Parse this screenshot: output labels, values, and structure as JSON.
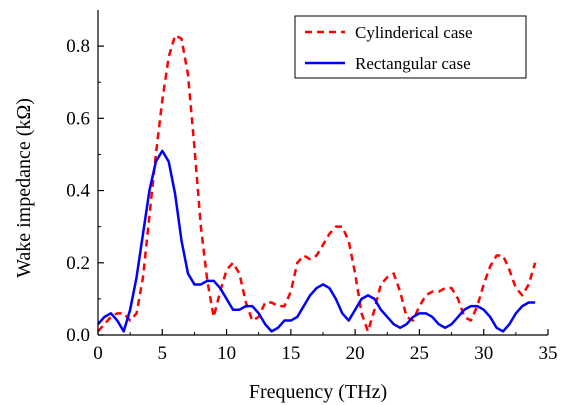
{
  "chart_data": {
    "type": "line",
    "title": "",
    "xlabel": "Frequency (THz)",
    "ylabel": "Wake impedance (kΩ)",
    "xlim": [
      0,
      35
    ],
    "ylim": [
      0,
      0.9
    ],
    "xticks": [
      0,
      5,
      10,
      15,
      20,
      25,
      30,
      35
    ],
    "yticks": [
      0.0,
      0.2,
      0.4,
      0.6,
      0.8
    ],
    "xtick_labels": [
      "0",
      "5",
      "10",
      "15",
      "20",
      "25",
      "30",
      "35"
    ],
    "ytick_labels": [
      "0.0",
      "0.2",
      "0.4",
      "0.6",
      "0.8"
    ],
    "grid": false,
    "legend_position": "top-right",
    "series": [
      {
        "name": "Cylinderical case",
        "style": "dashed",
        "color": "#ff0000",
        "x": [
          0,
          0.5,
          1,
          1.5,
          2,
          2.5,
          3,
          3.5,
          4,
          4.5,
          5,
          5.5,
          6,
          6.5,
          7,
          7.5,
          8,
          8.5,
          9,
          9.5,
          10,
          10.5,
          11,
          11.5,
          12,
          12.5,
          13,
          13.5,
          14,
          14.5,
          15,
          15.5,
          16,
          16.5,
          17,
          17.5,
          18,
          18.5,
          19,
          19.5,
          20,
          20.5,
          21,
          21.5,
          22,
          22.5,
          23,
          23.5,
          24,
          24.5,
          25,
          25.5,
          26,
          26.5,
          27,
          27.5,
          28,
          28.5,
          29,
          29.5,
          30,
          30.5,
          31,
          31.5,
          32,
          32.5,
          33,
          33.5,
          34
        ],
        "y": [
          0.01,
          0.03,
          0.05,
          0.06,
          0.06,
          0.04,
          0.06,
          0.16,
          0.33,
          0.5,
          0.65,
          0.77,
          0.83,
          0.82,
          0.72,
          0.52,
          0.3,
          0.15,
          0.05,
          0.12,
          0.18,
          0.2,
          0.17,
          0.09,
          0.04,
          0.05,
          0.09,
          0.09,
          0.08,
          0.08,
          0.12,
          0.2,
          0.22,
          0.21,
          0.22,
          0.25,
          0.28,
          0.3,
          0.3,
          0.26,
          0.17,
          0.06,
          0.01,
          0.07,
          0.14,
          0.16,
          0.17,
          0.12,
          0.05,
          0.04,
          0.08,
          0.11,
          0.12,
          0.12,
          0.13,
          0.13,
          0.1,
          0.05,
          0.04,
          0.08,
          0.14,
          0.19,
          0.22,
          0.22,
          0.18,
          0.13,
          0.11,
          0.14,
          0.2
        ]
      },
      {
        "name": "Rectangular case",
        "style": "solid",
        "color": "#0000ff",
        "x": [
          0,
          0.5,
          1,
          1.5,
          2,
          2.5,
          3,
          3.5,
          4,
          4.5,
          5,
          5.5,
          6,
          6.5,
          7,
          7.5,
          8,
          8.5,
          9,
          9.5,
          10,
          10.5,
          11,
          11.5,
          12,
          12.5,
          13,
          13.5,
          14,
          14.5,
          15,
          15.5,
          16,
          16.5,
          17,
          17.5,
          18,
          18.5,
          19,
          19.5,
          20,
          20.5,
          21,
          21.5,
          22,
          22.5,
          23,
          23.5,
          24,
          24.5,
          25,
          25.5,
          26,
          26.5,
          27,
          27.5,
          28,
          28.5,
          29,
          29.5,
          30,
          30.5,
          31,
          31.5,
          32,
          32.5,
          33,
          33.5,
          34
        ],
        "y": [
          0.03,
          0.05,
          0.06,
          0.04,
          0.01,
          0.07,
          0.16,
          0.28,
          0.4,
          0.48,
          0.51,
          0.48,
          0.39,
          0.26,
          0.17,
          0.14,
          0.14,
          0.15,
          0.15,
          0.13,
          0.1,
          0.07,
          0.07,
          0.08,
          0.08,
          0.06,
          0.03,
          0.01,
          0.02,
          0.04,
          0.04,
          0.05,
          0.08,
          0.11,
          0.13,
          0.14,
          0.13,
          0.1,
          0.06,
          0.04,
          0.07,
          0.1,
          0.11,
          0.1,
          0.07,
          0.05,
          0.03,
          0.02,
          0.03,
          0.05,
          0.06,
          0.06,
          0.05,
          0.03,
          0.02,
          0.03,
          0.05,
          0.07,
          0.08,
          0.08,
          0.07,
          0.05,
          0.02,
          0.01,
          0.03,
          0.06,
          0.08,
          0.09,
          0.09
        ]
      }
    ]
  }
}
